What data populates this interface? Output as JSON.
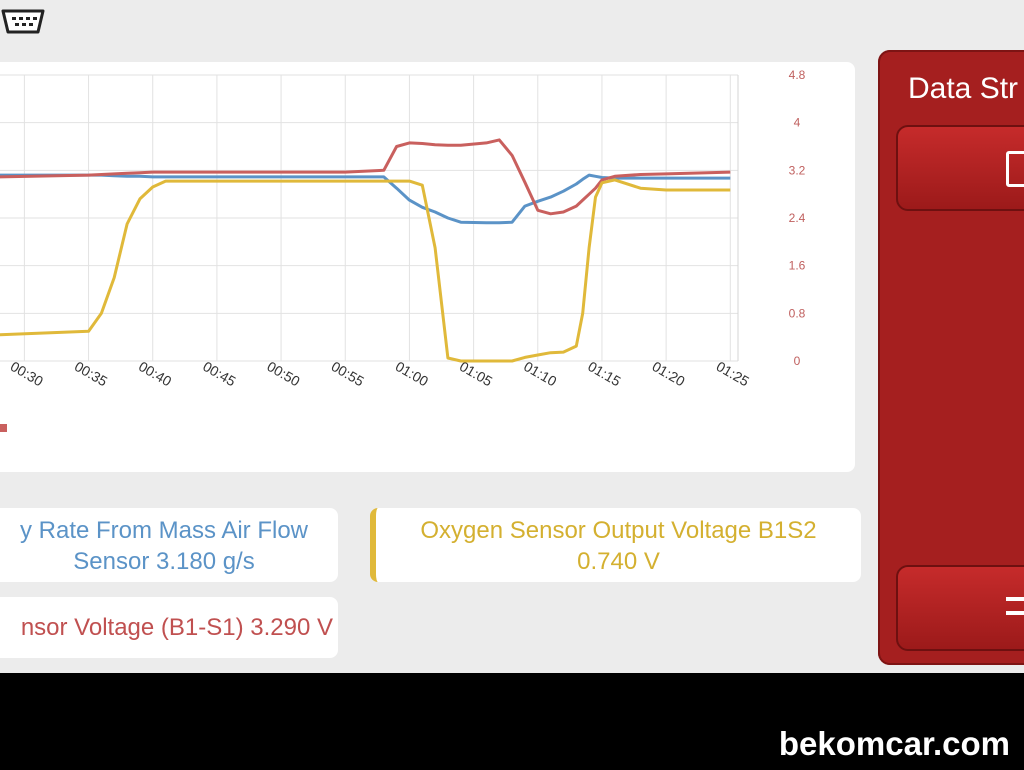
{
  "chart_data": {
    "type": "line",
    "x": [
      28,
      35,
      36,
      37,
      38,
      39,
      40,
      41,
      45,
      50,
      55,
      58,
      59,
      60,
      61,
      62,
      63,
      64,
      66,
      67,
      68,
      69,
      70,
      71,
      72,
      73,
      73.5,
      74,
      74.5,
      75,
      76,
      78,
      80,
      85
    ],
    "xlim": [
      28.1,
      85.6
    ],
    "xticks": [
      {
        "value": 30,
        "label": "00:30"
      },
      {
        "value": 35,
        "label": "00:35"
      },
      {
        "value": 40,
        "label": "00:40"
      },
      {
        "value": 45,
        "label": "00:45"
      },
      {
        "value": 50,
        "label": "00:50"
      },
      {
        "value": 55,
        "label": "00:55"
      },
      {
        "value": 60,
        "label": "01:00"
      },
      {
        "value": 65,
        "label": "01:05"
      },
      {
        "value": 70,
        "label": "01:10"
      },
      {
        "value": 75,
        "label": "01:15"
      },
      {
        "value": 80,
        "label": "01:20"
      },
      {
        "value": 85,
        "label": "01:25"
      }
    ],
    "ylim": [
      0,
      4.8
    ],
    "yticks": [
      0,
      0.8,
      1.6,
      2.4,
      3.2,
      4,
      4.8
    ],
    "ytick_color": "#c0605f",
    "grid": true,
    "series": [
      {
        "color": "#5b93c7",
        "values": [
          3.12,
          3.12,
          3.12,
          3.11,
          3.1,
          3.1,
          3.09,
          3.09,
          3.09,
          3.09,
          3.09,
          3.09,
          2.9,
          2.7,
          2.58,
          2.5,
          2.4,
          2.33,
          2.32,
          2.32,
          2.33,
          2.6,
          2.68,
          2.75,
          2.85,
          2.97,
          3.05,
          3.12,
          3.1,
          3.08,
          3.07,
          3.07,
          3.07,
          3.07
        ]
      },
      {
        "color": "#c9605e",
        "values": [
          3.09,
          3.12,
          3.13,
          3.14,
          3.15,
          3.16,
          3.17,
          3.17,
          3.17,
          3.17,
          3.17,
          3.2,
          3.6,
          3.66,
          3.65,
          3.63,
          3.62,
          3.62,
          3.66,
          3.71,
          3.45,
          3.0,
          2.53,
          2.47,
          2.5,
          2.6,
          2.7,
          2.8,
          2.9,
          3.04,
          3.1,
          3.13,
          3.14,
          3.17
        ]
      },
      {
        "color": "#e0b93a",
        "values": [
          0.44,
          0.5,
          0.8,
          1.4,
          2.3,
          2.72,
          2.92,
          3.02,
          3.02,
          3.02,
          3.02,
          3.02,
          3.02,
          3.02,
          2.95,
          1.9,
          0.05,
          0,
          0,
          0,
          0,
          0.06,
          0.1,
          0.14,
          0.15,
          0.25,
          0.8,
          1.9,
          2.75,
          2.99,
          3.04,
          2.9,
          2.87,
          2.87
        ]
      }
    ]
  },
  "ui": {
    "cards": [
      {
        "lines": [
          "y Rate From Mass Air Flow",
          "Sensor 3.180 g/s"
        ]
      },
      {
        "lines": [
          "Oxygen Sensor Output Voltage B1S2",
          "0.740 V"
        ]
      },
      {
        "lines": [
          "nsor Voltage (B1-S1) 3.290 V"
        ]
      }
    ],
    "panel_title": "Data Str",
    "watermark": "bekomcar.com"
  }
}
